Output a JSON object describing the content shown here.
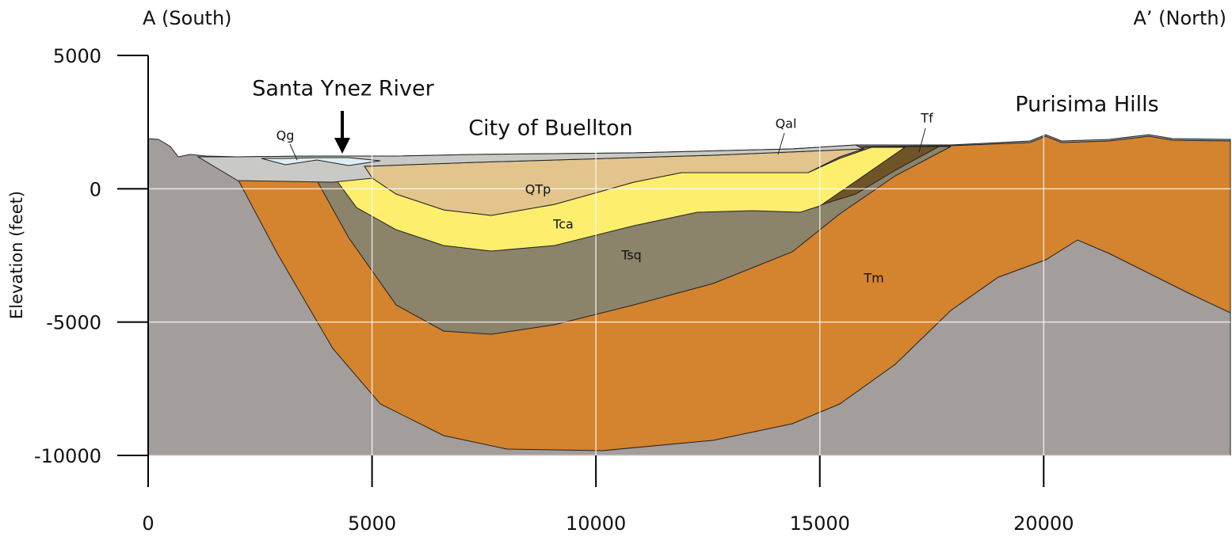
{
  "header": {
    "left": "A (South)",
    "right": "A’ (North)"
  },
  "axes": {
    "y_label": "Elevation (feet)",
    "xlim": [
      0,
      24170
    ],
    "ylim": [
      -10000,
      5000
    ],
    "xticks": [
      0,
      5000,
      10000,
      15000,
      20000
    ],
    "yticks": [
      5000,
      0,
      -5000,
      -10000
    ]
  },
  "annotations": {
    "river": "Santa Ynez River",
    "city": "City of Buellton",
    "hills": "Purisima Hills"
  },
  "units": {
    "qg": "Qg",
    "qal": "Qal",
    "tf": "Tf",
    "qtp": "QTp",
    "tca": "Tca",
    "tsq": "Tsq",
    "tm": "Tm"
  }
}
